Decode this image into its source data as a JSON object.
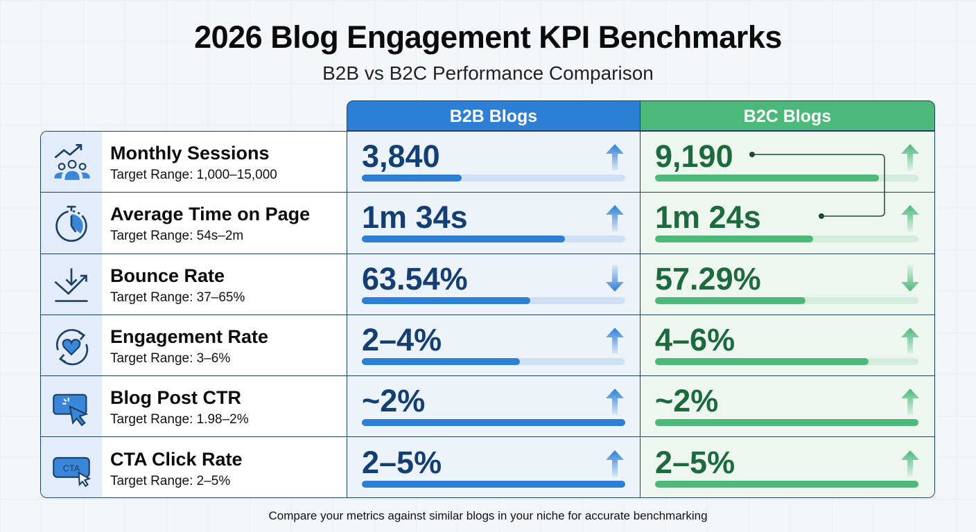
{
  "title": "2026 Blog Engagement KPI Benchmarks",
  "subtitle": "B2B vs B2C Performance Comparison",
  "footer": "Compare your metrics against similar blogs in your niche for accurate benchmarking",
  "colors": {
    "b2b": "#2d7fd6",
    "b2c": "#4cb87a",
    "b2b_text": "#143f73",
    "b2c_text": "#1d6a3e",
    "border": "#1e3f66"
  },
  "chart_data": {
    "type": "table",
    "columns": [
      "B2B Blogs",
      "B2C Blogs"
    ],
    "rows": [
      {
        "icon": "audience-growth-icon",
        "metric": "Monthly Sessions",
        "target": "Target Range: 1,000–15,000",
        "b2b": {
          "value": "3,840",
          "trend": "up",
          "bar": 0.38
        },
        "b2c": {
          "value": "9,190",
          "trend": "up",
          "bar": 0.85
        }
      },
      {
        "icon": "stopwatch-icon",
        "metric": "Average Time on Page",
        "target": "Target Range: 54s–2m",
        "b2b": {
          "value": "1m 34s",
          "trend": "up",
          "bar": 0.77
        },
        "b2c": {
          "value": "1m 24s",
          "trend": "up",
          "bar": 0.6
        }
      },
      {
        "icon": "bounce-icon",
        "metric": "Bounce Rate",
        "target": "Target Range: 37–65%",
        "b2b": {
          "value": "63.54%",
          "trend": "down",
          "bar": 0.64
        },
        "b2c": {
          "value": "57.29%",
          "trend": "down",
          "bar": 0.57
        }
      },
      {
        "icon": "heart-cycle-icon",
        "metric": "Engagement Rate",
        "target": "Target Range: 3–6%",
        "b2b": {
          "value": "2–4%",
          "trend": "up",
          "bar": 0.6
        },
        "b2c": {
          "value": "4–6%",
          "trend": "up",
          "bar": 0.81
        }
      },
      {
        "icon": "click-cursor-icon",
        "metric": "Blog Post CTR",
        "target": "Target Range: 1.98–2%",
        "b2b": {
          "value": "~2%",
          "trend": "up",
          "bar": 1.0
        },
        "b2c": {
          "value": "~2%",
          "trend": "up",
          "bar": 1.0
        }
      },
      {
        "icon": "cta-button-icon",
        "metric": "CTA Click Rate",
        "target": "Target Range: 2–5%",
        "b2b": {
          "value": "2–5%",
          "trend": "up",
          "bar": 1.0
        },
        "b2c": {
          "value": "2–5%",
          "trend": "up",
          "bar": 1.0
        }
      }
    ]
  }
}
